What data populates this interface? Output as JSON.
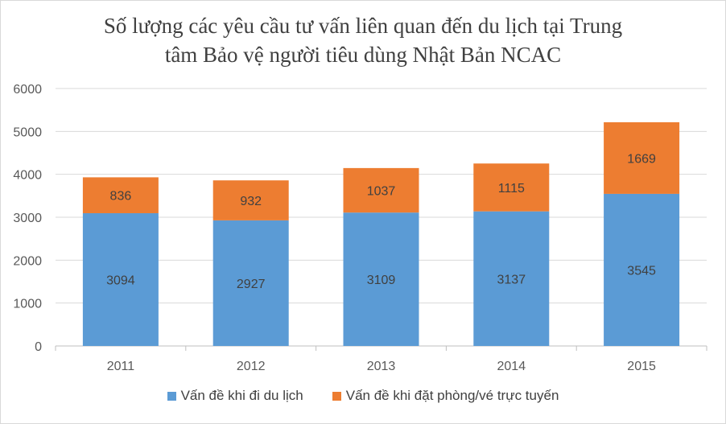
{
  "chart_data": {
    "type": "bar",
    "stacked": true,
    "title_lines": [
      "Số lượng các yêu cầu tư vấn liên quan đến du lịch tại Trung",
      "tâm Bảo vệ người tiêu dùng Nhật Bản NCAC"
    ],
    "categories": [
      "2011",
      "2012",
      "2013",
      "2014",
      "2015"
    ],
    "series": [
      {
        "name": "Vấn đề khi đi du lịch",
        "color": "#5b9bd5",
        "values": [
          3094,
          2927,
          3109,
          3137,
          3545
        ]
      },
      {
        "name": "Vấn đề khi đặt phòng/vé trực tuyến",
        "color": "#ed7d31",
        "values": [
          836,
          932,
          1037,
          1115,
          1669
        ]
      }
    ],
    "ylim": [
      0,
      6000
    ],
    "yticks": [
      "0",
      "1000",
      "2000",
      "3000",
      "4000",
      "5000",
      "6000"
    ],
    "grid": true,
    "legend_position": "bottom",
    "data_labels": true
  }
}
